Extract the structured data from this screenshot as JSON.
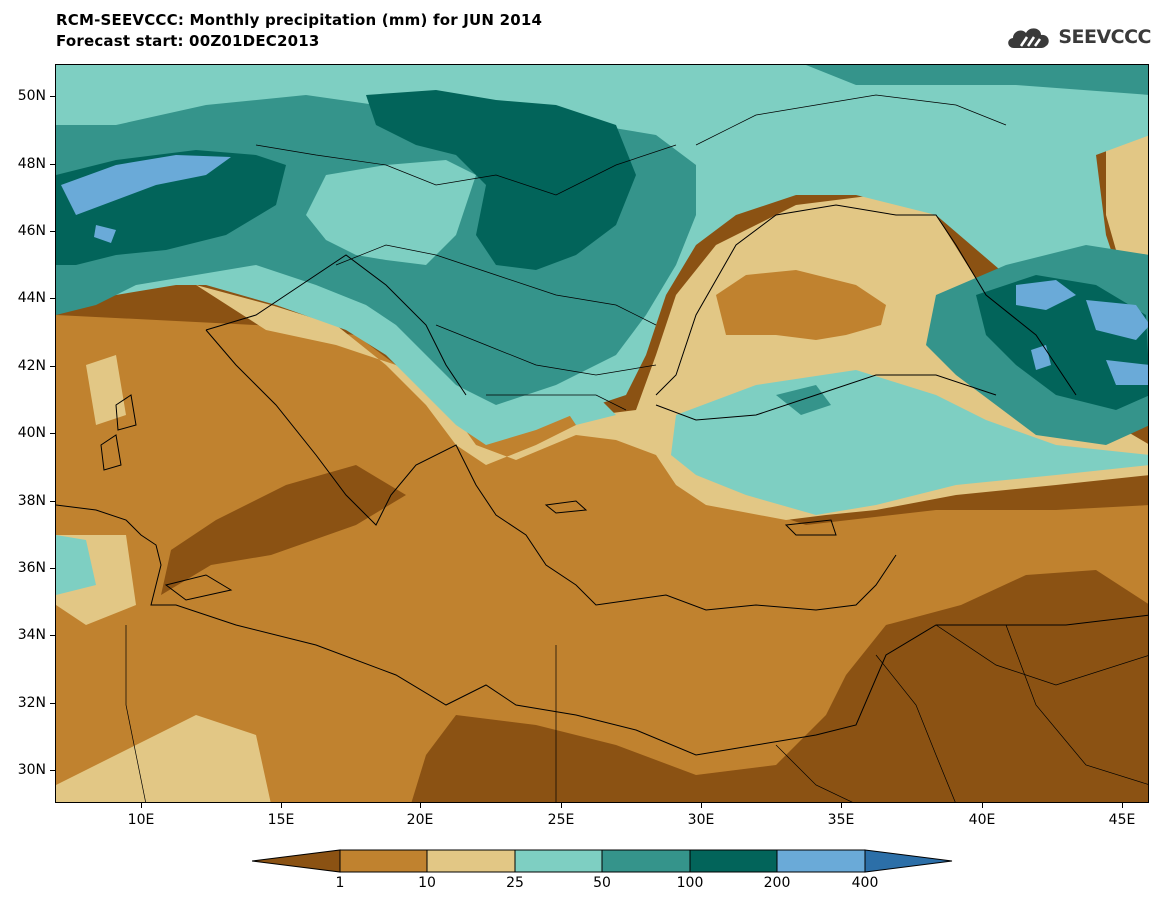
{
  "header": {
    "title": "RCM-SEEVCCC: Monthly precipitation (mm) for JUN 2014",
    "subtitle": "Forecast start: 00Z01DEC2013",
    "logo_text": "SEEVCCC",
    "logo_icon": "cloud-icon"
  },
  "map": {
    "lat_labels": [
      "50N",
      "48N",
      "46N",
      "44N",
      "42N",
      "40N",
      "38N",
      "36N",
      "34N",
      "32N",
      "30N"
    ],
    "lon_labels": [
      "10E",
      "15E",
      "20E",
      "25E",
      "30E",
      "35E",
      "40E",
      "45E"
    ]
  },
  "legend": {
    "unit": "mm",
    "thresholds": [
      "1",
      "10",
      "25",
      "50",
      "100",
      "200",
      "400"
    ],
    "colors": [
      "#8b5213",
      "#c0822f",
      "#e2c785",
      "#7ecfc2",
      "#35948b",
      "#02645a",
      "#6aaad8",
      "#2c6fa8"
    ]
  }
}
